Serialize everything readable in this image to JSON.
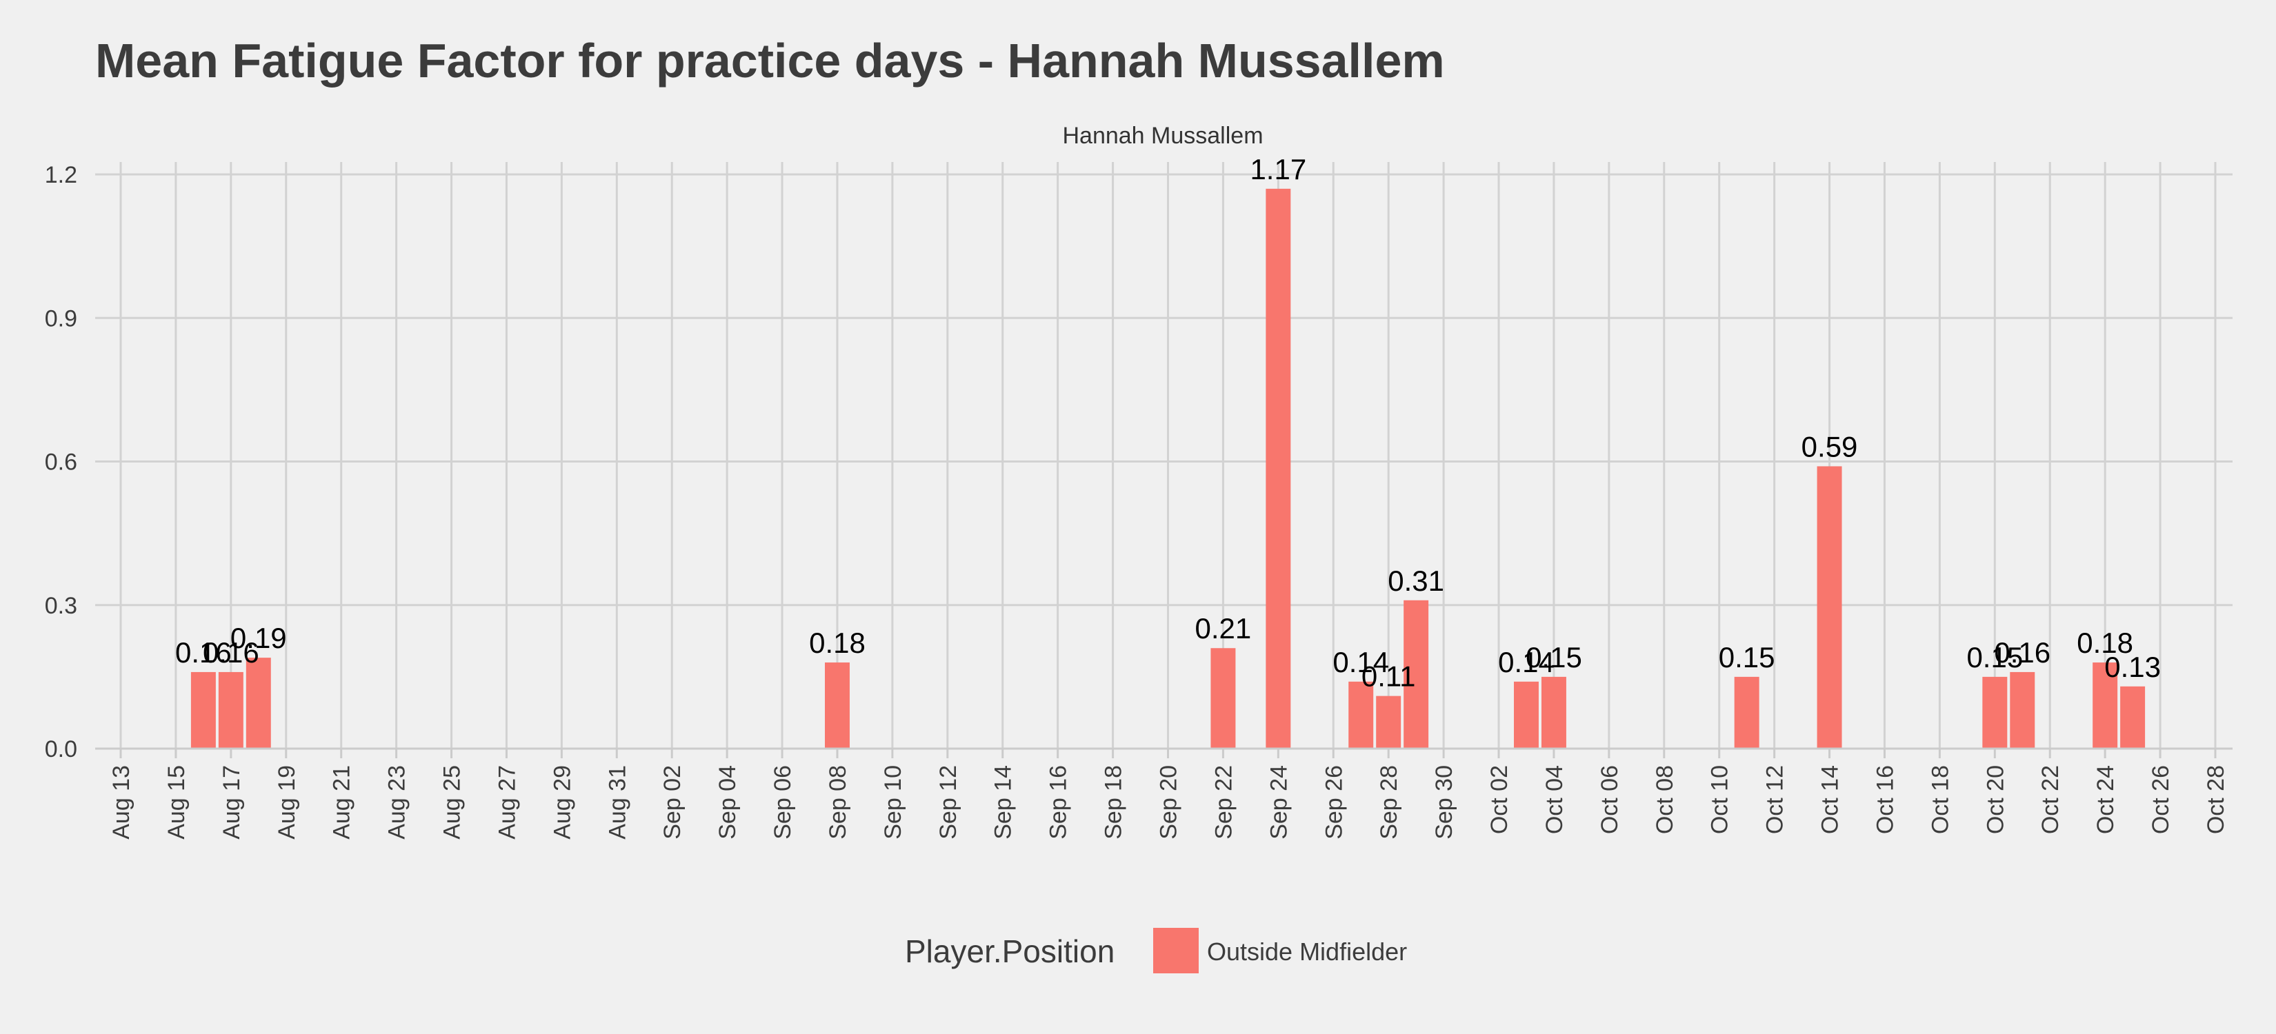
{
  "chart_data": {
    "type": "bar",
    "title": "Mean Fatigue Factor for practice days -  Hannah Mussallem",
    "facet_label": "Hannah Mussallem",
    "xlabel": "",
    "ylabel": "",
    "ylim": [
      0,
      1.2
    ],
    "xlim": [
      "2024-08-13",
      "2024-10-28"
    ],
    "y_ticks": [
      "0.0",
      "0.3",
      "0.6",
      "0.9",
      "1.2"
    ],
    "y_tick_values": [
      0,
      0.3,
      0.6,
      0.9,
      1.2
    ],
    "x_ticks": [
      {
        "date": "2024-08-13",
        "label": "Aug 13"
      },
      {
        "date": "2024-08-15",
        "label": "Aug 15"
      },
      {
        "date": "2024-08-17",
        "label": "Aug 17"
      },
      {
        "date": "2024-08-19",
        "label": "Aug 19"
      },
      {
        "date": "2024-08-21",
        "label": "Aug 21"
      },
      {
        "date": "2024-08-23",
        "label": "Aug 23"
      },
      {
        "date": "2024-08-25",
        "label": "Aug 25"
      },
      {
        "date": "2024-08-27",
        "label": "Aug 27"
      },
      {
        "date": "2024-08-29",
        "label": "Aug 29"
      },
      {
        "date": "2024-08-31",
        "label": "Aug 31"
      },
      {
        "date": "2024-09-02",
        "label": "Sep 02"
      },
      {
        "date": "2024-09-04",
        "label": "Sep 04"
      },
      {
        "date": "2024-09-06",
        "label": "Sep 06"
      },
      {
        "date": "2024-09-08",
        "label": "Sep 08"
      },
      {
        "date": "2024-09-10",
        "label": "Sep 10"
      },
      {
        "date": "2024-09-12",
        "label": "Sep 12"
      },
      {
        "date": "2024-09-14",
        "label": "Sep 14"
      },
      {
        "date": "2024-09-16",
        "label": "Sep 16"
      },
      {
        "date": "2024-09-18",
        "label": "Sep 18"
      },
      {
        "date": "2024-09-20",
        "label": "Sep 20"
      },
      {
        "date": "2024-09-22",
        "label": "Sep 22"
      },
      {
        "date": "2024-09-24",
        "label": "Sep 24"
      },
      {
        "date": "2024-09-26",
        "label": "Sep 26"
      },
      {
        "date": "2024-09-28",
        "label": "Sep 28"
      },
      {
        "date": "2024-09-30",
        "label": "Sep 30"
      },
      {
        "date": "2024-10-02",
        "label": "Oct 02"
      },
      {
        "date": "2024-10-04",
        "label": "Oct 04"
      },
      {
        "date": "2024-10-06",
        "label": "Oct 06"
      },
      {
        "date": "2024-10-08",
        "label": "Oct 08"
      },
      {
        "date": "2024-10-10",
        "label": "Oct 10"
      },
      {
        "date": "2024-10-12",
        "label": "Oct 12"
      },
      {
        "date": "2024-10-14",
        "label": "Oct 14"
      },
      {
        "date": "2024-10-16",
        "label": "Oct 16"
      },
      {
        "date": "2024-10-18",
        "label": "Oct 18"
      },
      {
        "date": "2024-10-20",
        "label": "Oct 20"
      },
      {
        "date": "2024-10-22",
        "label": "Oct 22"
      },
      {
        "date": "2024-10-24",
        "label": "Oct 24"
      },
      {
        "date": "2024-10-26",
        "label": "Oct 26"
      },
      {
        "date": "2024-10-28",
        "label": "Oct 28"
      }
    ],
    "series": [
      {
        "name": "Outside Midfielder",
        "color": "#f8766d",
        "points": [
          {
            "x": "2024-08-16",
            "y": 0.16,
            "label": "0.16"
          },
          {
            "x": "2024-08-17",
            "y": 0.16,
            "label": "0.16"
          },
          {
            "x": "2024-08-18",
            "y": 0.19,
            "label": "0.19"
          },
          {
            "x": "2024-09-08",
            "y": 0.18,
            "label": "0.18"
          },
          {
            "x": "2024-09-22",
            "y": 0.21,
            "label": "0.21"
          },
          {
            "x": "2024-09-24",
            "y": 1.17,
            "label": "1.17"
          },
          {
            "x": "2024-09-27",
            "y": 0.14,
            "label": "0.14"
          },
          {
            "x": "2024-09-28",
            "y": 0.11,
            "label": "0.11"
          },
          {
            "x": "2024-09-29",
            "y": 0.31,
            "label": "0.31"
          },
          {
            "x": "2024-10-03",
            "y": 0.14,
            "label": "0.14"
          },
          {
            "x": "2024-10-04",
            "y": 0.15,
            "label": "0.15"
          },
          {
            "x": "2024-10-11",
            "y": 0.15,
            "label": "0.15"
          },
          {
            "x": "2024-10-14",
            "y": 0.59,
            "label": "0.59"
          },
          {
            "x": "2024-10-20",
            "y": 0.15,
            "label": "0.15"
          },
          {
            "x": "2024-10-21",
            "y": 0.16,
            "label": "0.16"
          },
          {
            "x": "2024-10-24",
            "y": 0.18,
            "label": "0.18"
          },
          {
            "x": "2024-10-25",
            "y": 0.13,
            "label": "0.13"
          }
        ]
      }
    ],
    "legend": {
      "title": "Player.Position",
      "position": "bottom",
      "entries": [
        {
          "label": "Outside Midfielder",
          "color": "#f8766d"
        }
      ]
    },
    "grid": true
  }
}
